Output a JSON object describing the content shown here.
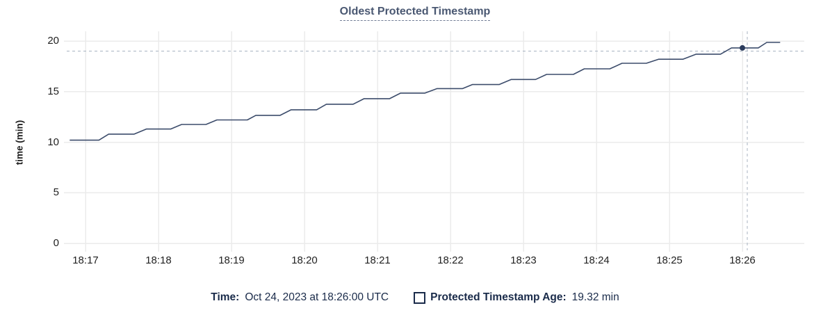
{
  "title": "Oldest Protected Timestamp",
  "colors": {
    "title": "#4a5872",
    "axis_label": "#1f1f1f",
    "grid": "#ebebeb",
    "series_line": "#3c4c6b",
    "hover_point": "#2b3b5c",
    "crosshair": "#a8b3c2",
    "legend_text": "#1a2b4a"
  },
  "y_axis": {
    "title": "time (min)",
    "ticks": [
      {
        "v": 0,
        "label": "0"
      },
      {
        "v": 5,
        "label": "5"
      },
      {
        "v": 10,
        "label": "10"
      },
      {
        "v": 15,
        "label": "15"
      },
      {
        "v": 20,
        "label": "20"
      }
    ]
  },
  "x_axis": {
    "ticks": [
      {
        "t": 0,
        "label": "18:17"
      },
      {
        "t": 60,
        "label": "18:18"
      },
      {
        "t": 120,
        "label": "18:19"
      },
      {
        "t": 180,
        "label": "18:20"
      },
      {
        "t": 240,
        "label": "18:21"
      },
      {
        "t": 300,
        "label": "18:22"
      },
      {
        "t": 360,
        "label": "18:23"
      },
      {
        "t": 420,
        "label": "18:24"
      },
      {
        "t": 480,
        "label": "18:25"
      },
      {
        "t": 540,
        "label": "18:26"
      }
    ]
  },
  "legend": {
    "time_label": "Time:",
    "time_value": "Oct 24, 2023 at 18:26:00 UTC",
    "series_label": "Protected Timestamp Age:",
    "series_value": "19.32 min"
  },
  "chart_data": {
    "type": "line",
    "title": "Oldest Protected Timestamp",
    "xlabel": "",
    "ylabel": "time (min)",
    "ylim": [
      0,
      21
    ],
    "grid": true,
    "legend_position": "bottom",
    "x_unit": "seconds after 18:17:00 UTC on Oct 24, 2023",
    "series": [
      {
        "name": "Protected Timestamp Age (min)",
        "points": [
          [
            -13,
            10.2
          ],
          [
            11,
            10.2
          ],
          [
            19,
            10.8
          ],
          [
            40,
            10.8
          ],
          [
            50,
            11.3
          ],
          [
            70,
            11.3
          ],
          [
            79,
            11.75
          ],
          [
            99,
            11.75
          ],
          [
            108,
            12.2
          ],
          [
            133,
            12.2
          ],
          [
            140,
            12.65
          ],
          [
            160,
            12.65
          ],
          [
            169,
            13.2
          ],
          [
            190,
            13.2
          ],
          [
            198,
            13.75
          ],
          [
            220,
            13.75
          ],
          [
            229,
            14.3
          ],
          [
            250,
            14.3
          ],
          [
            259,
            14.85
          ],
          [
            279,
            14.85
          ],
          [
            289,
            15.3
          ],
          [
            310,
            15.3
          ],
          [
            318,
            15.7
          ],
          [
            340,
            15.7
          ],
          [
            350,
            16.2
          ],
          [
            370,
            16.2
          ],
          [
            379,
            16.7
          ],
          [
            401,
            16.7
          ],
          [
            410,
            17.25
          ],
          [
            431,
            17.25
          ],
          [
            441,
            17.8
          ],
          [
            461,
            17.8
          ],
          [
            471,
            18.2
          ],
          [
            491,
            18.2
          ],
          [
            502,
            18.7
          ],
          [
            522,
            18.7
          ],
          [
            531,
            19.32
          ],
          [
            553,
            19.32
          ],
          [
            560,
            19.86
          ],
          [
            571,
            19.86
          ]
        ]
      }
    ],
    "hover_point": {
      "t": 540,
      "time": "18:26:00",
      "value": 19.32
    },
    "cursor": {
      "t": 544,
      "v": 19.0
    }
  }
}
